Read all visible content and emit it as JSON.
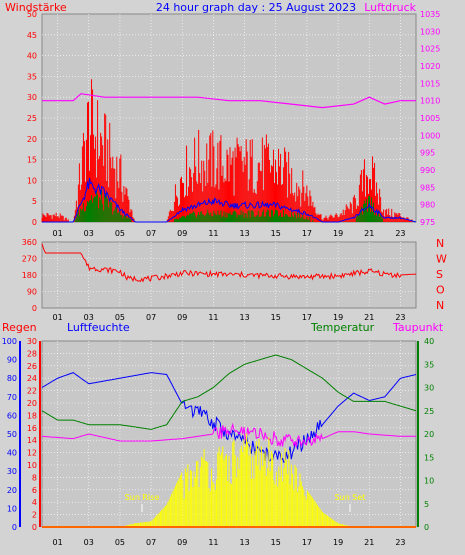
{
  "chart_data": [
    {
      "type": "bar",
      "title": "24 hour graph day : 25 August 2023",
      "left_label": "Windstärke",
      "right_label": "Luftdruck",
      "x_ticks": [
        "01",
        "03",
        "05",
        "07",
        "09",
        "11",
        "13",
        "15",
        "17",
        "19",
        "21",
        "23"
      ],
      "y_left_ticks": [
        "0",
        "5",
        "10",
        "15",
        "20",
        "25",
        "30",
        "35",
        "40",
        "45",
        "50"
      ],
      "y_left_range": [
        0,
        50
      ],
      "y_right_ticks": [
        "975",
        "980",
        "985",
        "990",
        "995",
        "1000",
        "1005",
        "1010",
        "1015",
        "1020",
        "1025",
        "1030",
        "1035"
      ],
      "y_right_range": [
        975,
        1035
      ],
      "grid": true,
      "series": [
        {
          "name": "gust",
          "color": "#ff0000",
          "x": [
            0,
            1,
            2,
            3,
            4,
            5,
            6,
            7,
            8,
            9,
            10,
            11,
            12,
            13,
            14,
            15,
            16,
            17,
            18,
            19,
            20,
            21,
            22,
            23,
            24
          ],
          "values": [
            2,
            2,
            0,
            29,
            22,
            14,
            0,
            0,
            0,
            14,
            18,
            18,
            17,
            17,
            17,
            17,
            13,
            9,
            1,
            2,
            5,
            16,
            3,
            2,
            0
          ]
        },
        {
          "name": "mean",
          "color": "#0000ff",
          "x": [
            0,
            1,
            2,
            3,
            4,
            5,
            6,
            7,
            8,
            9,
            10,
            11,
            12,
            13,
            14,
            15,
            16,
            17,
            18,
            19,
            20,
            21,
            22,
            23,
            24
          ],
          "values": [
            0,
            0,
            0,
            9,
            7,
            3,
            0,
            0,
            0,
            3,
            4,
            5,
            4,
            4,
            4,
            4,
            3,
            2,
            0,
            0,
            1,
            4,
            1,
            1,
            0
          ]
        },
        {
          "name": "calm",
          "color": "#008000",
          "x": [
            0,
            1,
            2,
            3,
            4,
            5,
            6,
            7,
            8,
            9,
            10,
            11,
            12,
            13,
            14,
            15,
            16,
            17,
            18,
            19,
            20,
            21,
            22,
            23,
            24
          ],
          "values": [
            0,
            0,
            0,
            6,
            5,
            2,
            0,
            0,
            0,
            1,
            2,
            2,
            2,
            2,
            2,
            2,
            2,
            1,
            0,
            0,
            0,
            5,
            0,
            0,
            0
          ]
        },
        {
          "name": "pressure",
          "axis": "right",
          "color": "#ff00ff",
          "x": [
            0,
            2,
            2.5,
            4,
            6,
            8,
            10,
            12,
            14,
            16,
            18,
            20,
            21,
            22,
            23,
            24
          ],
          "values": [
            1010,
            1010,
            1012,
            1011,
            1011,
            1011,
            1011,
            1010,
            1010,
            1009,
            1008,
            1009,
            1011,
            1009,
            1010,
            1010
          ]
        }
      ]
    },
    {
      "type": "line",
      "y_left_ticks": [
        "0",
        "90",
        "180",
        "270",
        "360"
      ],
      "y_left_range": [
        0,
        360
      ],
      "y_right_ticks": [
        "N",
        "W",
        "S",
        "O",
        "N"
      ],
      "x_ticks": [
        "01",
        "03",
        "05",
        "07",
        "09",
        "11",
        "13",
        "15",
        "17",
        "19",
        "21",
        "23"
      ],
      "grid": true,
      "series": [
        {
          "name": "direction",
          "color": "#ff0000",
          "x": [
            0,
            0.2,
            0.4,
            2.5,
            3,
            4,
            5,
            5.5,
            7,
            9,
            11,
            13,
            15,
            17,
            19,
            21,
            22,
            23,
            24
          ],
          "values": [
            350,
            300,
            300,
            300,
            220,
            210,
            200,
            160,
            160,
            190,
            185,
            180,
            175,
            170,
            175,
            200,
            185,
            180,
            185
          ]
        }
      ]
    },
    {
      "type": "line",
      "labels": {
        "rain": "Regen",
        "humidity": "Luftfeuchte",
        "temperature": "Temperatur",
        "dewpoint": "Taupunkt"
      },
      "annotations": [
        "Sun Rise",
        "Sun Set"
      ],
      "x_ticks": [
        "01",
        "03",
        "05",
        "07",
        "09",
        "11",
        "13",
        "15",
        "17",
        "19",
        "21",
        "23"
      ],
      "y_rain_ticks": [
        "0",
        "2",
        "4",
        "6",
        "8",
        "10",
        "12",
        "14",
        "16",
        "18",
        "20",
        "22",
        "24",
        "26",
        "28",
        "30"
      ],
      "y_rain_range": [
        0,
        30
      ],
      "y_humidity_ticks": [
        "0",
        "10",
        "20",
        "30",
        "40",
        "50",
        "60",
        "70",
        "80",
        "90",
        "100"
      ],
      "y_humidity_range": [
        0,
        100
      ],
      "y_temp_ticks": [
        "0",
        "5",
        "10",
        "15",
        "20",
        "25",
        "30",
        "35",
        "40"
      ],
      "y_temp_range": [
        0,
        40
      ],
      "grid": true,
      "series": [
        {
          "name": "humidity",
          "axis": "humidity",
          "color": "#0000ff",
          "x": [
            0,
            1,
            2,
            3,
            5,
            7,
            8,
            9,
            10,
            11,
            12,
            13,
            14,
            15,
            16,
            17,
            18,
            19,
            20,
            21,
            22,
            23,
            24
          ],
          "values": [
            75,
            80,
            83,
            77,
            80,
            83,
            82,
            66,
            62,
            56,
            50,
            46,
            40,
            37,
            40,
            47,
            55,
            65,
            72,
            68,
            70,
            80,
            82
          ]
        },
        {
          "name": "temperature",
          "axis": "temp",
          "color": "#008000",
          "x": [
            0,
            1,
            2,
            3,
            5,
            7,
            8,
            9,
            10,
            11,
            12,
            13,
            14,
            15,
            16,
            17,
            18,
            19,
            20,
            21,
            22,
            23,
            24
          ],
          "values": [
            25,
            23,
            23,
            22,
            22,
            21,
            22,
            27,
            28,
            30,
            33,
            35,
            36,
            37,
            36,
            34,
            32,
            29,
            27,
            27,
            27,
            26,
            25
          ]
        },
        {
          "name": "dewpoint",
          "axis": "temp",
          "color": "#ff00ff",
          "x": [
            0,
            2,
            3,
            5,
            7,
            9,
            11,
            12,
            13,
            14,
            15,
            16,
            17,
            18,
            19,
            20,
            21,
            23,
            24
          ],
          "values": [
            19.5,
            19,
            20,
            18.5,
            18.5,
            19,
            20,
            21,
            20,
            20,
            19,
            18.5,
            18.5,
            19,
            20.5,
            20.5,
            20,
            19.5,
            19.5
          ]
        },
        {
          "name": "solar",
          "axis": "humidity",
          "color": "#ffff00",
          "x": [
            0,
            5,
            6,
            7,
            8,
            9,
            10,
            11,
            12,
            13,
            14,
            15,
            16,
            17,
            18,
            19,
            20,
            24
          ],
          "values": [
            0,
            0,
            2,
            3,
            12,
            30,
            45,
            42,
            47,
            51,
            50,
            48,
            42,
            20,
            8,
            2,
            0,
            0
          ]
        },
        {
          "name": "rain",
          "axis": "rain",
          "color": "#ff6600",
          "x": [
            0,
            24
          ],
          "values": [
            0,
            0
          ]
        }
      ]
    }
  ]
}
